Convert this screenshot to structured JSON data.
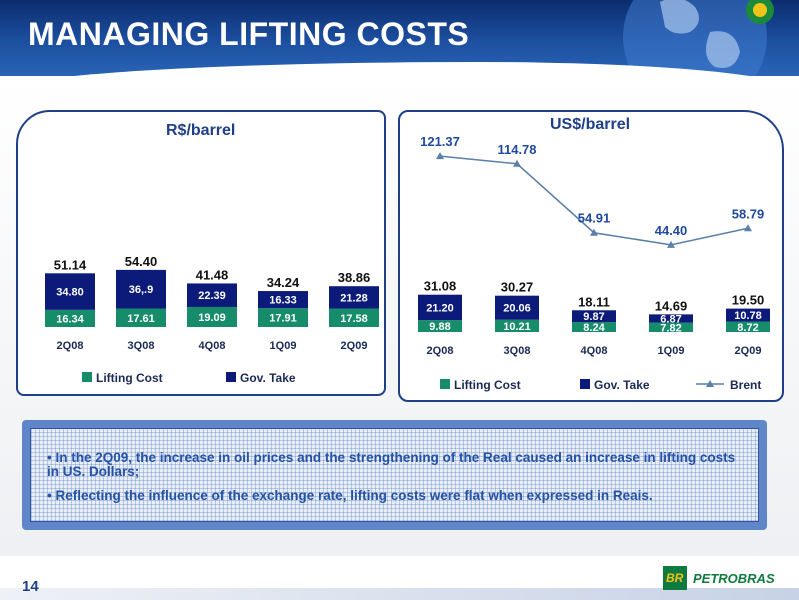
{
  "slide": {
    "title": "MANAGING LIFTING COSTS",
    "page_number": "14",
    "logo_text": "PETROBRAS",
    "logo_mark": "BR",
    "notes": [
      "• In the 2Q09, the increase in oil prices and the strengthening of the Real caused an increase in lifting costs in US. Dollars;",
      "• Reflecting the influence of the exchange rate, lifting costs were flat when expressed in Reais."
    ]
  },
  "colors": {
    "header": "#1d4fa0",
    "lifting_cost": "#168c6a",
    "gov_take": "#0c1a7a",
    "brent": "#5a7fa8",
    "panel_border": "#1f3f86"
  },
  "chart_data": [
    {
      "type": "bar",
      "stacked": true,
      "title": "R$/barrel",
      "categories": [
        "2Q08",
        "3Q08",
        "4Q08",
        "1Q09",
        "2Q09"
      ],
      "series": [
        {
          "name": "Lifting Cost",
          "values": [
            16.34,
            17.61,
            19.09,
            17.91,
            17.58
          ],
          "labels": [
            "16.34",
            "17.61",
            "19.09",
            "17.91",
            "17.58"
          ]
        },
        {
          "name": "Gov. Take",
          "values": [
            34.8,
            36.79,
            22.39,
            16.33,
            21.28
          ],
          "labels": [
            "34.80",
            "36,.9",
            "22.39",
            "16.33",
            "21.28"
          ]
        }
      ],
      "totals": [
        "51.14",
        "54.40",
        "41.48",
        "34.24",
        "38.86"
      ],
      "legend": "bottom"
    },
    {
      "type": "bar",
      "stacked": true,
      "title": "US$/barrel",
      "categories": [
        "2Q08",
        "3Q08",
        "4Q08",
        "1Q09",
        "2Q09"
      ],
      "series": [
        {
          "name": "Lifting Cost",
          "values": [
            9.88,
            10.21,
            8.24,
            7.82,
            8.72
          ],
          "labels": [
            "9.88",
            "10.21",
            "8.24",
            "7.82",
            "8.72"
          ]
        },
        {
          "name": "Gov. Take",
          "values": [
            21.2,
            20.06,
            9.87,
            6.87,
            10.78
          ],
          "labels": [
            "21.20",
            "20.06",
            "9.87",
            "6.87",
            "10.78"
          ]
        },
        {
          "name": "Brent",
          "type": "line",
          "values": [
            121.37,
            114.78,
            54.91,
            44.4,
            58.79
          ],
          "labels": [
            "121.37",
            "114.78",
            "54.91",
            "44.40",
            "58.79"
          ]
        }
      ],
      "totals": [
        "31.08",
        "30.27",
        "18.11",
        "14.69",
        "19.50"
      ],
      "legend": "bottom"
    }
  ]
}
